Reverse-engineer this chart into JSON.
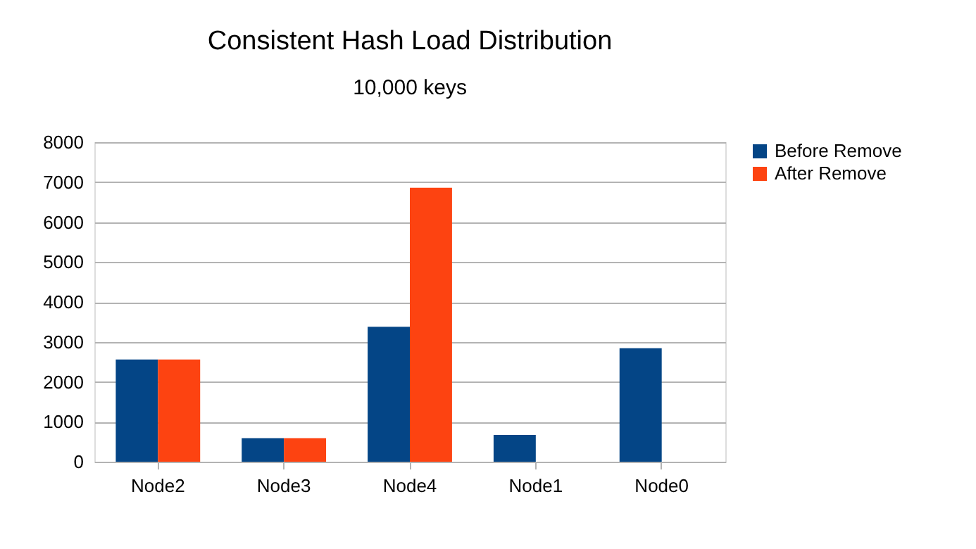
{
  "chart_data": {
    "type": "bar",
    "title": "Consistent Hash Load Distribution",
    "subtitle": "10,000 keys",
    "categories": [
      "Node2",
      "Node3",
      "Node4",
      "Node1",
      "Node0"
    ],
    "series": [
      {
        "name": "Before Remove",
        "color": "#044586",
        "values": [
          2560,
          590,
          3380,
          670,
          2840
        ]
      },
      {
        "name": "After Remove",
        "color": "#fd4311",
        "values": [
          2560,
          590,
          6860,
          0,
          0
        ]
      }
    ],
    "ylim": [
      0,
      8000
    ],
    "yticks": [
      0,
      1000,
      2000,
      3000,
      4000,
      5000,
      6000,
      7000,
      8000
    ],
    "grid": "y",
    "legend": "right"
  }
}
